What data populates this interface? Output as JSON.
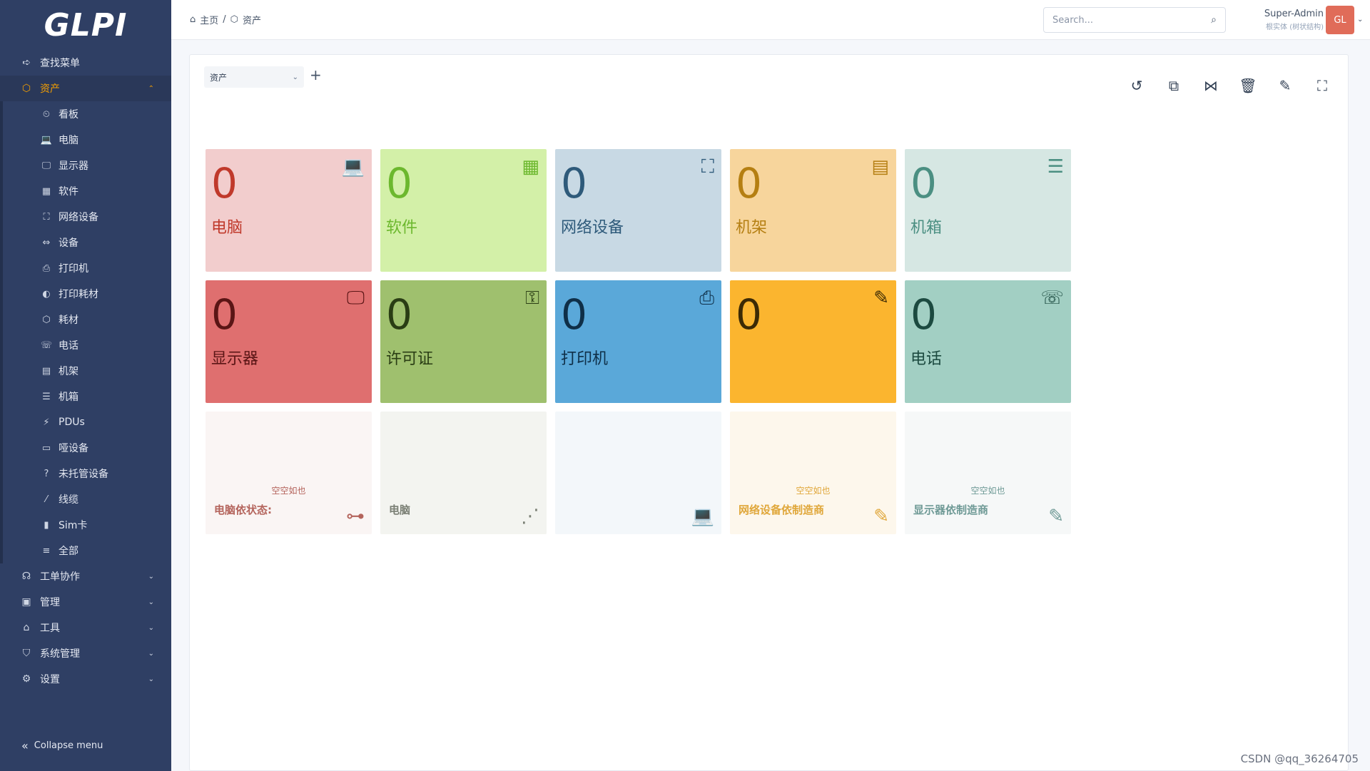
{
  "sidebar": {
    "logo": "GLPI",
    "find_menu": "查找菜单",
    "assets": "资产",
    "assets_items": [
      {
        "label": "看板",
        "icon": "⏲"
      },
      {
        "label": "电脑",
        "icon": "💻"
      },
      {
        "label": "显示器",
        "icon": "🖵"
      },
      {
        "label": "软件",
        "icon": "▦"
      },
      {
        "label": "网络设备",
        "icon": "⛶"
      },
      {
        "label": "设备",
        "icon": "⇔"
      },
      {
        "label": "打印机",
        "icon": "⎙"
      },
      {
        "label": "打印耗材",
        "icon": "◐"
      },
      {
        "label": "耗材",
        "icon": "⬡"
      },
      {
        "label": "电话",
        "icon": "☏"
      },
      {
        "label": "机架",
        "icon": "▤"
      },
      {
        "label": "机箱",
        "icon": "☰"
      },
      {
        "label": "PDUs",
        "icon": "⚡"
      },
      {
        "label": "哑设备",
        "icon": "▭"
      },
      {
        "label": "未托管设备",
        "icon": "?"
      },
      {
        "label": "线缆",
        "icon": "⁄"
      },
      {
        "label": "Sim卡",
        "icon": "▮"
      },
      {
        "label": "全部",
        "icon": "≡"
      }
    ],
    "sections": [
      {
        "label": "工单协作",
        "icon": "☊"
      },
      {
        "label": "管理",
        "icon": "▣"
      },
      {
        "label": "工具",
        "icon": "⌂"
      },
      {
        "label": "系统管理",
        "icon": "⛉"
      },
      {
        "label": "设置",
        "icon": "⚙"
      }
    ],
    "collapse": "Collapse menu"
  },
  "header": {
    "breadcrumb_home": "主页",
    "breadcrumb_sep": "/",
    "breadcrumb_current": "资产",
    "search_placeholder": "Search...",
    "user_name": "Super-Admin",
    "user_entity": "根实体 (树状结构)",
    "avatar": "GL"
  },
  "dashboard": {
    "selected": "资产",
    "add": "+"
  },
  "cards": [
    {
      "value": "0",
      "label": "电脑",
      "icon": "💻",
      "bg": "#f2cdcd",
      "fg": "#c0392b"
    },
    {
      "value": "0",
      "label": "软件",
      "icon": "▦",
      "bg": "#d3f0a8",
      "fg": "#6cb82e"
    },
    {
      "value": "0",
      "label": "网络设备",
      "icon": "⛶",
      "bg": "#c8d9e4",
      "fg": "#2e5a7a"
    },
    {
      "value": "0",
      "label": "机架",
      "icon": "▤",
      "bg": "#f7d59c",
      "fg": "#b57f12"
    },
    {
      "value": "0",
      "label": "机箱",
      "icon": "☰",
      "bg": "#d6e7e3",
      "fg": "#4b8f82"
    },
    {
      "value": "0",
      "label": "显示器",
      "icon": "🖵",
      "bg": "#df6f6f",
      "fg": "#5a1515"
    },
    {
      "value": "0",
      "label": "许可证",
      "icon": "⚿",
      "bg": "#9fc06e",
      "fg": "#2a3d14"
    },
    {
      "value": "0",
      "label": "打印机",
      "icon": "⎙",
      "bg": "#5aa8d9",
      "fg": "#0f2f48"
    },
    {
      "value": "0",
      "label": "",
      "icon": "✎",
      "bg": "#fbb52f",
      "fg": "#3c2a05"
    },
    {
      "value": "0",
      "label": "电话",
      "icon": "☏",
      "bg": "#a2cfc3",
      "fg": "#1c4a40"
    }
  ],
  "chart_cards": [
    {
      "empty": "空空如也",
      "footer": "电脑依状态:",
      "icon": "⊶",
      "bg": "#faf5f4",
      "fg": "#b4645c"
    },
    {
      "empty": "",
      "footer": "电脑",
      "icon": "⋰",
      "bg": "#f3f4f0",
      "fg": "#7a7f74"
    },
    {
      "empty": "",
      "footer": "",
      "icon": "💻",
      "bg": "#f3f7fa",
      "fg": "#5f8cab"
    },
    {
      "empty": "空空如也",
      "footer": "网络设备依制造商",
      "icon": "✎",
      "bg": "#fdf7ec",
      "fg": "#e0a73a"
    },
    {
      "empty": "空空如也",
      "footer": "显示器依制造商",
      "icon": "✎",
      "bg": "#f6f8f8",
      "fg": "#6f9a96"
    }
  ],
  "watermark": "CSDN @qq_36264705"
}
